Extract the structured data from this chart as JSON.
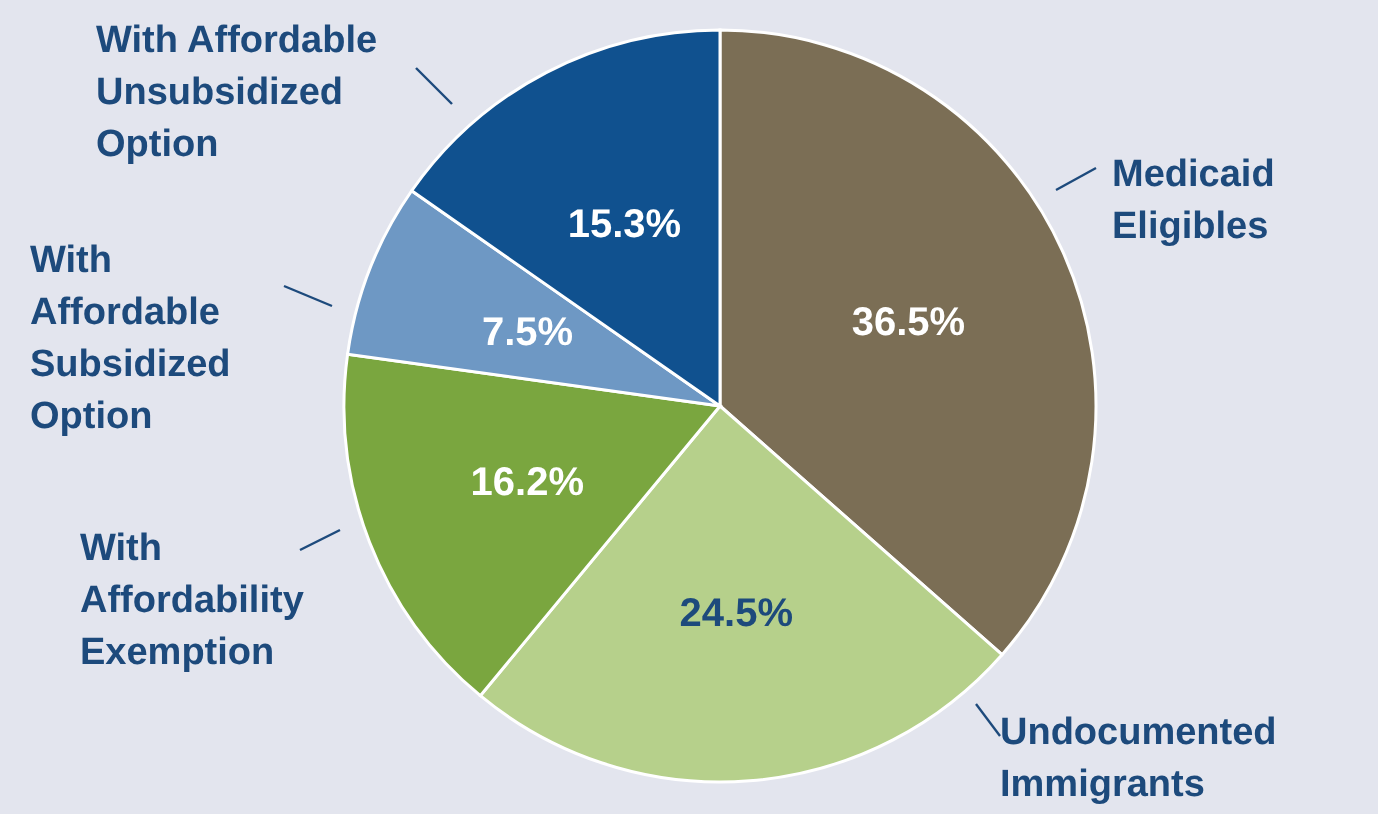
{
  "chart_data": {
    "type": "pie",
    "categories": [
      "Medicaid\nEligibles",
      "Undocumented\nImmigrants",
      "With\nAffordability\nExemption",
      "With\nAffordable\nSubsidized\nOption",
      "With Affordable\nUnsubsidized\nOption"
    ],
    "values": [
      36.5,
      24.5,
      16.2,
      7.5,
      15.3
    ],
    "value_labels": [
      "36.5%",
      "24.5%",
      "16.2%",
      "7.5%",
      "15.3%"
    ],
    "colors": [
      "#7b6e55",
      "#b6d08b",
      "#7aa63f",
      "#6e98c4",
      "#10518f"
    ]
  }
}
